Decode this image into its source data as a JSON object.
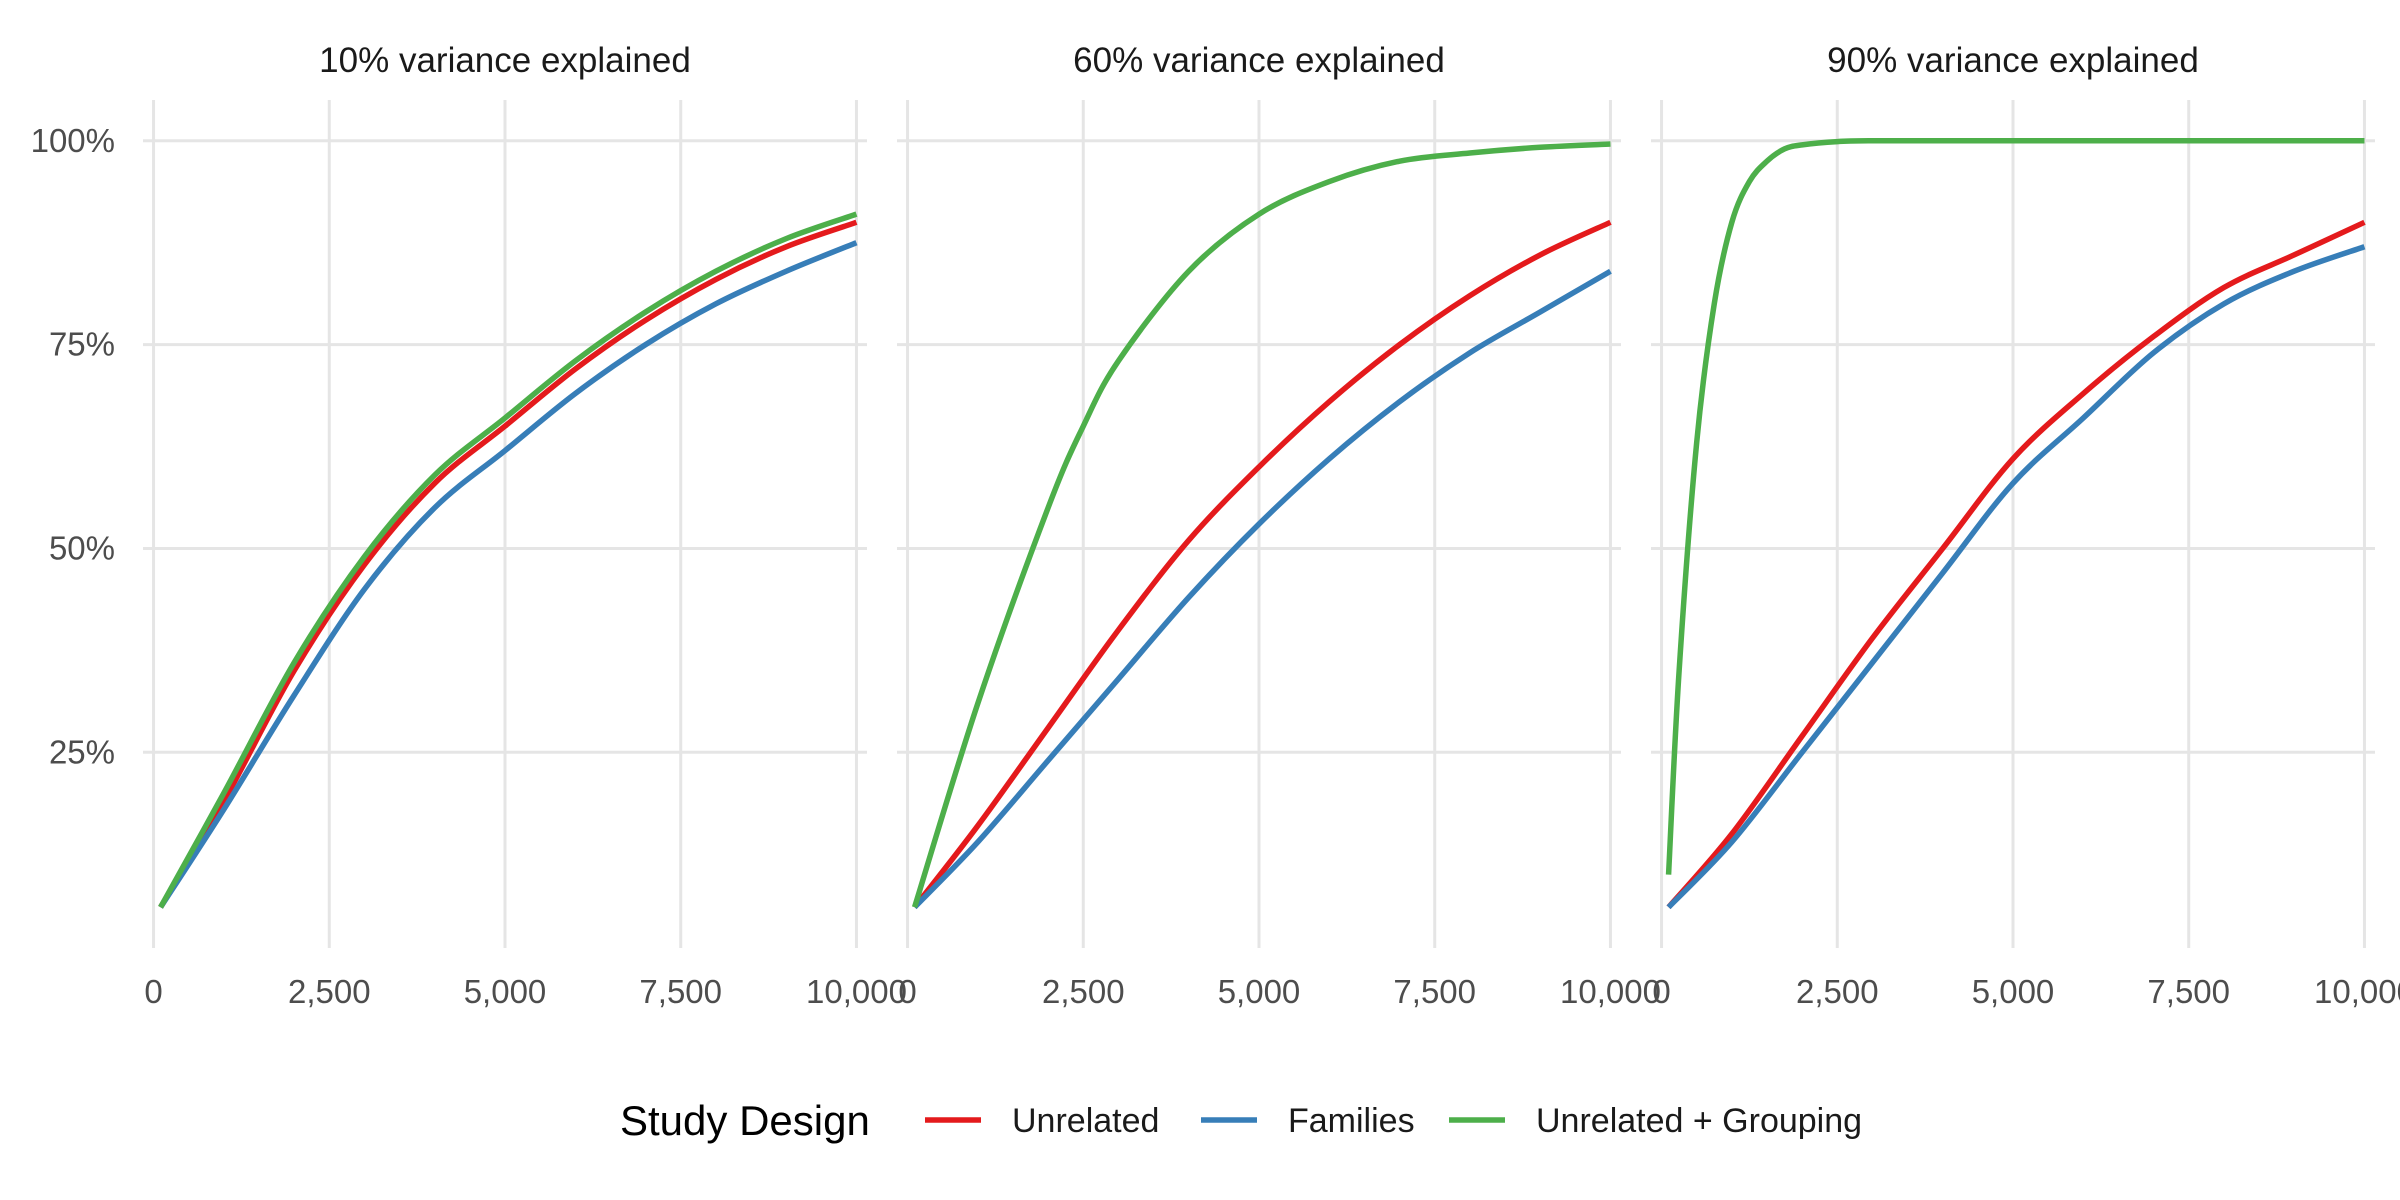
{
  "chart_data": {
    "type": "line",
    "facet_titles": [
      "10% variance explained",
      "60% variance explained",
      "90% variance explained"
    ],
    "x_ticks": [
      0,
      2500,
      5000,
      7500,
      10000
    ],
    "x_tick_labels": [
      "0",
      "2,500",
      "5,000",
      "7,500",
      "10,000"
    ],
    "y_ticks": [
      0.25,
      0.5,
      0.75,
      1.0
    ],
    "y_tick_labels": [
      "25%",
      "50%",
      "75%",
      "100%"
    ],
    "xlim": [
      -150,
      10150
    ],
    "ylim": [
      0.01,
      1.05
    ],
    "grid": true,
    "legend": {
      "title": "Study Design",
      "position": "bottom",
      "entries": [
        {
          "label": "Unrelated",
          "color": "#e41a1c"
        },
        {
          "label": "Families",
          "color": "#377eb8"
        },
        {
          "label": "Unrelated + Grouping",
          "color": "#4daf4a"
        }
      ]
    },
    "panels": [
      {
        "title": "10% variance explained",
        "series": [
          {
            "name": "Unrelated",
            "color": "#e41a1c",
            "x": [
              100,
              1000,
              2000,
              3000,
              4000,
              5000,
              6000,
              7000,
              8000,
              9000,
              10000
            ],
            "y": [
              0.06,
              0.19,
              0.35,
              0.48,
              0.58,
              0.65,
              0.72,
              0.78,
              0.83,
              0.87,
              0.9
            ]
          },
          {
            "name": "Families",
            "color": "#377eb8",
            "x": [
              100,
              1000,
              2000,
              3000,
              4000,
              5000,
              6000,
              7000,
              8000,
              9000,
              10000
            ],
            "y": [
              0.06,
              0.18,
              0.32,
              0.45,
              0.55,
              0.62,
              0.69,
              0.75,
              0.8,
              0.84,
              0.875
            ]
          },
          {
            "name": "Unrelated + Grouping",
            "color": "#4daf4a",
            "x": [
              100,
              1000,
              2000,
              3000,
              4000,
              5000,
              6000,
              7000,
              8000,
              9000,
              10000
            ],
            "y": [
              0.06,
              0.2,
              0.36,
              0.49,
              0.59,
              0.66,
              0.73,
              0.79,
              0.84,
              0.88,
              0.91
            ]
          }
        ]
      },
      {
        "title": "60% variance explained",
        "series": [
          {
            "name": "Unrelated",
            "color": "#e41a1c",
            "x": [
              100,
              1000,
              2000,
              3000,
              4000,
              5000,
              6000,
              7000,
              8000,
              9000,
              10000
            ],
            "y": [
              0.06,
              0.16,
              0.28,
              0.4,
              0.51,
              0.6,
              0.68,
              0.75,
              0.81,
              0.86,
              0.9
            ]
          },
          {
            "name": "Families",
            "color": "#377eb8",
            "x": [
              100,
              1000,
              2000,
              3000,
              4000,
              5000,
              6000,
              7000,
              8000,
              9000,
              10000
            ],
            "y": [
              0.06,
              0.14,
              0.24,
              0.34,
              0.44,
              0.53,
              0.61,
              0.68,
              0.74,
              0.79,
              0.84
            ]
          },
          {
            "name": "Unrelated + Grouping",
            "color": "#4daf4a",
            "x": [
              100,
              1000,
              2000,
              2500,
              3000,
              4000,
              5000,
              6000,
              7000,
              8000,
              9000,
              10000
            ],
            "y": [
              0.06,
              0.31,
              0.55,
              0.65,
              0.73,
              0.84,
              0.91,
              0.95,
              0.975,
              0.985,
              0.992,
              0.996
            ]
          }
        ]
      },
      {
        "title": "90% variance explained",
        "series": [
          {
            "name": "Unrelated",
            "color": "#e41a1c",
            "x": [
              100,
              1000,
              2000,
              3000,
              4000,
              5000,
              6000,
              7000,
              8000,
              9000,
              10000
            ],
            "y": [
              0.06,
              0.15,
              0.27,
              0.39,
              0.5,
              0.61,
              0.69,
              0.76,
              0.82,
              0.86,
              0.9
            ]
          },
          {
            "name": "Families",
            "color": "#377eb8",
            "x": [
              100,
              1000,
              2000,
              3000,
              4000,
              5000,
              6000,
              7000,
              8000,
              9000,
              10000
            ],
            "y": [
              0.06,
              0.14,
              0.25,
              0.36,
              0.47,
              0.58,
              0.66,
              0.74,
              0.8,
              0.84,
              0.87
            ]
          },
          {
            "name": "Unrelated + Grouping",
            "color": "#4daf4a",
            "x": [
              100,
              250,
              500,
              750,
              1000,
              1250,
              1500,
              1750,
              2000,
              2500,
              3000,
              4000,
              5000,
              7500,
              10000
            ],
            "y": [
              0.1,
              0.35,
              0.63,
              0.8,
              0.9,
              0.95,
              0.975,
              0.99,
              0.995,
              0.999,
              1.0,
              1.0,
              1.0,
              1.0,
              1.0
            ]
          }
        ]
      }
    ]
  }
}
